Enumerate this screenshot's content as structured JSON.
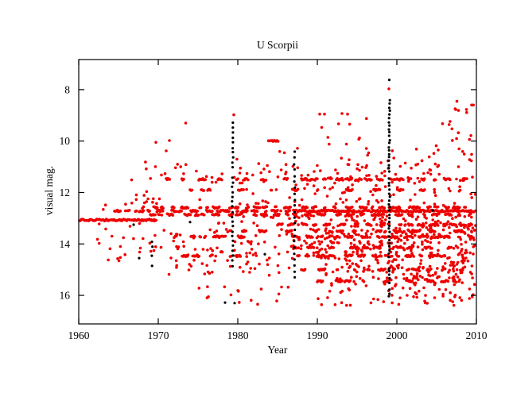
{
  "chart_data": {
    "type": "scatter",
    "title": "U Scorpii",
    "xlabel": "Year",
    "ylabel": "visual mag.",
    "x_range": [
      1960,
      2010
    ],
    "y_range_inverted": [
      17.11,
      6.83
    ],
    "x_ticks": [
      1960,
      1970,
      1980,
      1990,
      2000,
      2010
    ],
    "y_ticks": [
      8,
      10,
      12,
      14,
      16
    ],
    "grid": false,
    "legend": "none",
    "colors": {
      "observations": "#ee0000",
      "outbursts": "#000000",
      "axis": "#000000",
      "background": "#ffffff"
    },
    "dot_radius_red": 1.8,
    "dot_radius_black": 1.6,
    "seed": 20107,
    "series": [
      {
        "key": "red_points",
        "meaning": "visual observations (red dots)"
      },
      {
        "key": "black_points",
        "meaning": "outburst-epoch observations (black dots)"
      }
    ],
    "outbursts": [
      {
        "year": 1969.2,
        "bright_mag": 13.9,
        "faint_mag": 14.85,
        "n": 6
      },
      {
        "year": 1979.35,
        "bright_mag": 9.3,
        "faint_mag": 14.85,
        "n": 30
      },
      {
        "year": 1987.15,
        "bright_mag": 10.42,
        "faint_mag": 15.3,
        "n": 22
      },
      {
        "year": 1999.05,
        "bright_mag": 8.42,
        "faint_mag": 16.05,
        "n": 56
      }
    ],
    "bands": [
      {
        "mag": 13.07,
        "from": 1960.1,
        "to": 1969.8,
        "per_year": 14,
        "solid": true
      },
      {
        "mag": 12.72,
        "from": 1964.5,
        "to": 1987.0,
        "per_year": 8,
        "solid": false
      },
      {
        "mag": 12.72,
        "from": 1987.0,
        "to": 2009.9,
        "per_year": 13,
        "solid": true
      },
      {
        "mag": 12.58,
        "from": 1968.0,
        "to": 2009.9,
        "per_year": 6,
        "solid": false
      },
      {
        "mag": 12.86,
        "from": 1969.0,
        "to": 2009.9,
        "per_year": 6,
        "solid": false
      },
      {
        "mag": 11.49,
        "from": 1971.0,
        "to": 1988.0,
        "per_year": 3,
        "solid": false
      },
      {
        "mag": 11.49,
        "from": 1988.0,
        "to": 2001.5,
        "per_year": 9,
        "solid": false
      },
      {
        "mag": 11.49,
        "from": 2001.5,
        "to": 2009.8,
        "per_year": 5,
        "solid": false
      },
      {
        "mag": 13.72,
        "from": 1972.0,
        "to": 1981.0,
        "per_year": 4,
        "solid": false
      },
      {
        "mag": 13.72,
        "from": 1987.0,
        "to": 2009.8,
        "per_year": 7,
        "solid": false
      },
      {
        "mag": 14.46,
        "from": 1973.0,
        "to": 1981.0,
        "per_year": 3,
        "solid": false
      },
      {
        "mag": 14.46,
        "from": 1987.5,
        "to": 2006.0,
        "per_year": 6,
        "solid": false
      },
      {
        "mag": 13.25,
        "from": 1985.0,
        "to": 2009.5,
        "per_year": 6,
        "solid": false
      },
      {
        "mag": 14.15,
        "from": 1987.0,
        "to": 2008.0,
        "per_year": 4,
        "solid": false
      },
      {
        "mag": 15.0,
        "from": 1988.0,
        "to": 2009.0,
        "per_year": 4,
        "solid": false
      },
      {
        "mag": 15.45,
        "from": 1990.0,
        "to": 2009.0,
        "per_year": 3.5,
        "solid": false
      },
      {
        "mag": 10.0,
        "from": 1983.85,
        "to": 1985.2,
        "per_year": 18,
        "solid": true
      },
      {
        "mag": 11.9,
        "from": 1974.0,
        "to": 2008.0,
        "per_year": 1.5,
        "solid": false
      },
      {
        "mag": 13.5,
        "from": 1979.0,
        "to": 2009.0,
        "per_year": 3,
        "solid": false
      }
    ],
    "clouds": [
      {
        "from": 1962.0,
        "to": 1971.0,
        "bright": 12.2,
        "faint": 14.7,
        "n": 40
      },
      {
        "from": 1966.0,
        "to": 1979.0,
        "bright": 10.8,
        "faint": 12.4,
        "n": 26
      },
      {
        "from": 1971.0,
        "to": 1979.5,
        "bright": 13.1,
        "faint": 15.2,
        "n": 48
      },
      {
        "from": 1975.0,
        "to": 1987.0,
        "bright": 15.5,
        "faint": 16.35,
        "n": 16
      },
      {
        "from": 1979.5,
        "to": 1987.0,
        "bright": 10.4,
        "faint": 15.3,
        "n": 90
      },
      {
        "from": 1987.0,
        "to": 2010.0,
        "bright": 10.7,
        "faint": 12.5,
        "n": 115
      },
      {
        "from": 1987.0,
        "to": 2010.0,
        "bright": 12.9,
        "faint": 14.6,
        "n": 320
      },
      {
        "from": 1991.0,
        "to": 2010.0,
        "bright": 14.6,
        "faint": 15.6,
        "n": 145
      },
      {
        "from": 1990.0,
        "to": 2009.7,
        "bright": 15.6,
        "faint": 16.4,
        "n": 55
      },
      {
        "from": 1990.0,
        "to": 1996.5,
        "bright": 8.9,
        "faint": 10.7,
        "n": 12
      },
      {
        "from": 2004.0,
        "to": 2009.9,
        "bright": 8.4,
        "faint": 10.8,
        "n": 24
      },
      {
        "from": 1996.0,
        "to": 2003.0,
        "bright": 9.9,
        "faint": 10.9,
        "n": 8
      }
    ],
    "red_singles": [
      [
        1979.5,
        8.98
      ],
      [
        1999.0,
        7.97
      ],
      [
        1973.45,
        9.3
      ],
      [
        1971.4,
        9.98
      ],
      [
        1971.0,
        10.38
      ],
      [
        1969.7,
        10.05
      ],
      [
        1987.5,
        10.28
      ],
      [
        2009.4,
        8.6
      ],
      [
        2009.62,
        8.6
      ],
      [
        1990.3,
        8.95
      ],
      [
        1990.9,
        8.95
      ],
      [
        1993.1,
        8.93
      ],
      [
        1993.8,
        8.95
      ]
    ],
    "black_singles": [
      [
        1999.05,
        7.62
      ],
      [
        1966.9,
        13.25
      ],
      [
        1967.6,
        14.55
      ],
      [
        1974.0,
        13.15
      ],
      [
        1983.4,
        14.4
      ],
      [
        2004.5,
        12.7
      ],
      [
        1978.4,
        16.28
      ],
      [
        1979.6,
        16.3
      ]
    ]
  }
}
